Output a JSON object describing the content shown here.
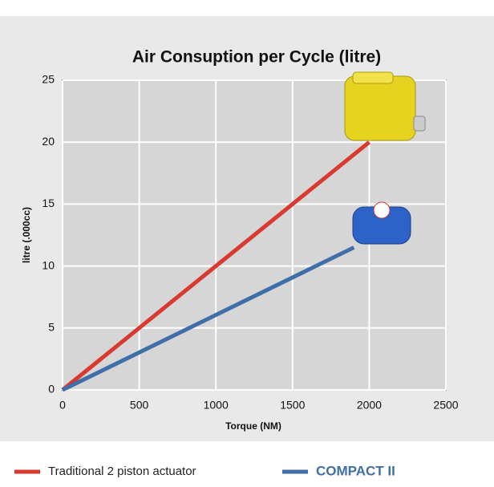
{
  "chart_data": {
    "type": "line",
    "title": "Air Consuption per Cycle (litre)",
    "x_label": "Torque (NM)",
    "y_label": "litre (.000cc)",
    "xlim": [
      0,
      2500
    ],
    "xticks": [
      0,
      500,
      1000,
      1500,
      2000,
      2500
    ],
    "ylim": [
      0,
      25
    ],
    "yticks": [
      0,
      5,
      10,
      15,
      20,
      25
    ],
    "grid": true,
    "series": [
      {
        "name": "Traditional 2 piston actuator",
        "color": "#d93a2f",
        "x": [
          0,
          2000
        ],
        "values": [
          0,
          20
        ]
      },
      {
        "name": "COMPACT II",
        "color": "#3f6ea8",
        "x": [
          0,
          1900
        ],
        "values": [
          0,
          11.5
        ]
      }
    ]
  }
}
